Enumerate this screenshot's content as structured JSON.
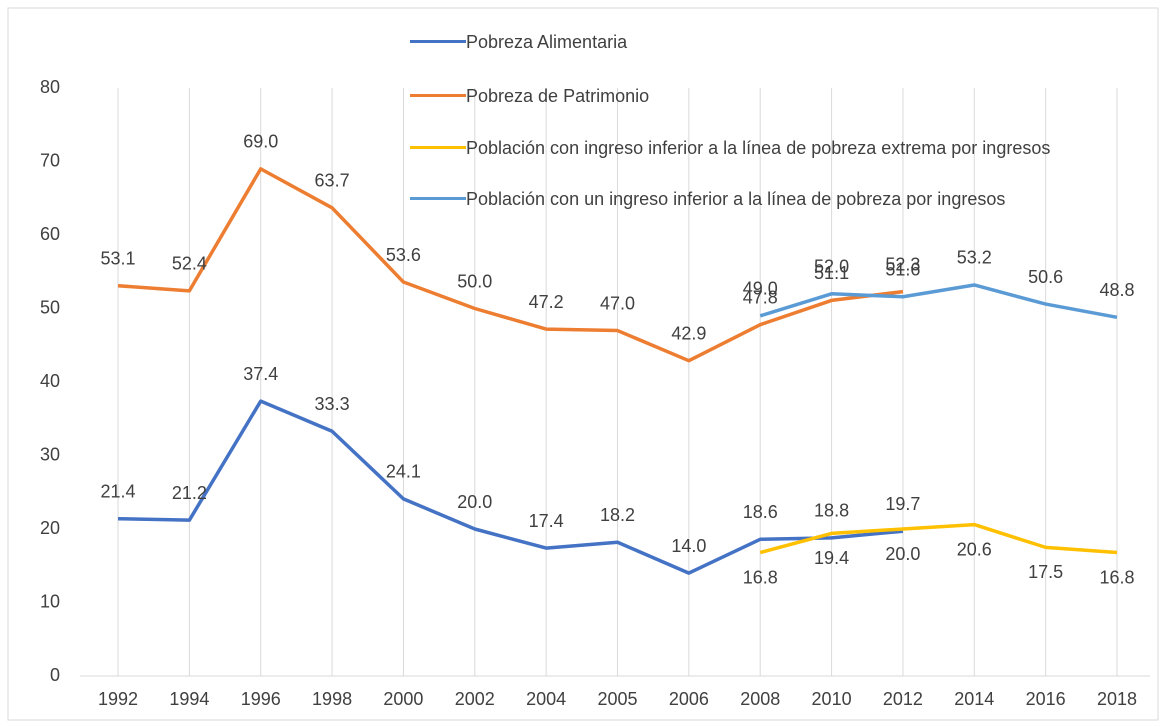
{
  "chart_data": {
    "type": "line",
    "categories": [
      "1992",
      "1994",
      "1996",
      "1998",
      "2000",
      "2002",
      "2004",
      "2005",
      "2006",
      "2008",
      "2010",
      "2012",
      "2014",
      "2016",
      "2018"
    ],
    "series": [
      {
        "name": "Pobreza Alimentaria",
        "color": "#4472c4",
        "values": [
          21.4,
          21.2,
          37.4,
          33.3,
          24.1,
          20.0,
          17.4,
          18.2,
          14.0,
          18.6,
          18.8,
          19.7,
          null,
          null,
          null
        ],
        "value_labels": [
          "21.4",
          "21.2",
          "37.4",
          "33.3",
          "24.1",
          "20.0",
          "17.4",
          "18.2",
          "14.0",
          "18.6",
          "18.8",
          "19.7",
          null,
          null,
          null
        ]
      },
      {
        "name": "Pobreza de Patrimonio",
        "color": "#ed7d31",
        "values": [
          53.1,
          52.4,
          69.0,
          63.7,
          53.6,
          50.0,
          47.2,
          47.0,
          42.9,
          47.8,
          51.1,
          52.3,
          null,
          null,
          null
        ],
        "value_labels": [
          "53.1",
          "52.4",
          "69.0",
          "63.7",
          "53.6",
          "50.0",
          "47.2",
          "47.0",
          "42.9",
          "47.8",
          "51.1",
          "52.3",
          null,
          null,
          null
        ]
      },
      {
        "name": "Población con ingreso inferior a la línea de pobreza extrema por ingresos",
        "color": "#ffc000",
        "values": [
          null,
          null,
          null,
          null,
          null,
          null,
          null,
          null,
          null,
          16.8,
          19.4,
          20.0,
          20.6,
          17.5,
          16.8
        ],
        "value_labels": [
          null,
          null,
          null,
          null,
          null,
          null,
          null,
          null,
          null,
          "16.8",
          "19.4",
          "20.0",
          "20.6",
          "17.5",
          "16.8"
        ]
      },
      {
        "name": "Población con un ingreso inferior a la línea de pobreza por ingresos",
        "color": "#5b9bd5",
        "values": [
          null,
          null,
          null,
          null,
          null,
          null,
          null,
          null,
          null,
          49.0,
          52.0,
          51.6,
          53.2,
          50.6,
          48.8
        ],
        "value_labels": [
          null,
          null,
          null,
          null,
          null,
          null,
          null,
          null,
          null,
          "49.0",
          "52.0",
          "51.6",
          "53.2",
          "50.6",
          "48.8"
        ]
      }
    ],
    "ylim": [
      0,
      80
    ],
    "yticks": [
      0,
      10,
      20,
      30,
      40,
      50,
      60,
      70,
      80
    ],
    "grid": "x"
  }
}
